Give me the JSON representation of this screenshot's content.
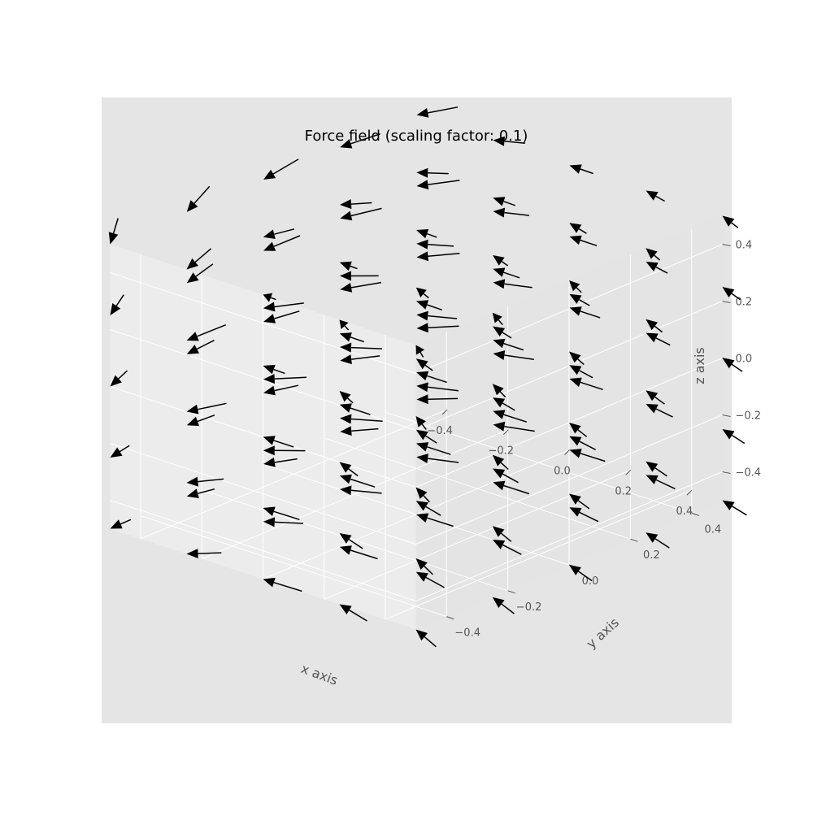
{
  "chart_data": {
    "type": "quiver3d",
    "title": "Force field (scaling factor: 0.1)",
    "xlabel": "x axis",
    "ylabel": "y axis",
    "zlabel": "z axis",
    "xlim": [
      -0.5,
      0.5
    ],
    "ylim": [
      -0.5,
      0.5
    ],
    "zlim": [
      -0.5,
      0.5
    ],
    "xticks": [
      -0.4,
      -0.2,
      0.0,
      0.2,
      0.4
    ],
    "yticks": [
      -0.4,
      -0.2,
      0.0,
      0.2,
      0.4
    ],
    "zticks": [
      -0.4,
      -0.2,
      0.0,
      0.2,
      0.4
    ],
    "xtick_labels": [
      "−0.4",
      "−0.2",
      "0.0",
      "0.2",
      "0.4"
    ],
    "ytick_labels": [
      "−0.4",
      "−0.2",
      "0.0",
      "0.2",
      "0.4"
    ],
    "ztick_labels": [
      "−0.4",
      "−0.2",
      "0.0",
      "0.2",
      "0.4"
    ],
    "grid": true,
    "background_color": "#e5e5e5",
    "pane_colors": [
      "#e8e8e8",
      "#ececec",
      "#e4e4e4"
    ],
    "arrow_color": "#000000",
    "grid_coords": [
      -0.5,
      -0.25,
      0.0,
      0.25,
      0.5
    ],
    "arrow_length": 0.1
  }
}
